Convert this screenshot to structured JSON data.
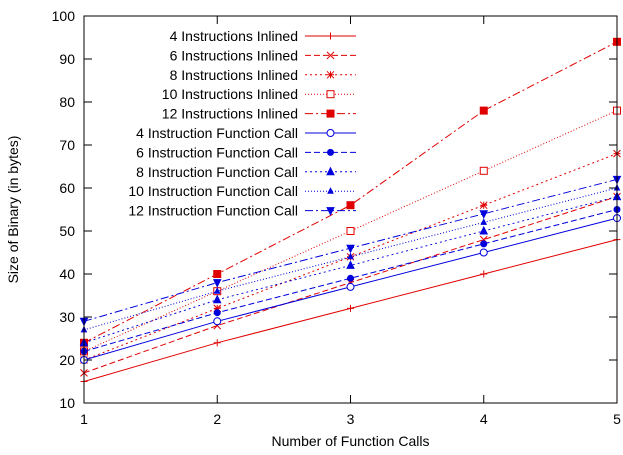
{
  "chart_data": {
    "type": "line",
    "title": "",
    "xlabel": "Number of Function Calls",
    "ylabel": "Size of Binary (in bytes)",
    "xlim": [
      1,
      5
    ],
    "ylim": [
      10,
      100
    ],
    "xticks": [
      1,
      2,
      3,
      4,
      5
    ],
    "yticks": [
      10,
      20,
      30,
      40,
      50,
      60,
      70,
      80,
      90,
      100
    ],
    "grid": false,
    "legend_position": "top-left",
    "x": [
      1,
      2,
      3,
      4,
      5
    ],
    "series": [
      {
        "name": "4 Instructions Inlined",
        "values": [
          15,
          24,
          32,
          40,
          48
        ],
        "color": "#e00000",
        "dash": "solid",
        "marker": "plus"
      },
      {
        "name": "6 Instructions Inlined",
        "values": [
          17,
          28,
          38,
          48,
          58
        ],
        "color": "#e00000",
        "dash": "dashed",
        "marker": "cross"
      },
      {
        "name": "8 Instructions Inlined",
        "values": [
          20,
          32,
          44,
          56,
          68
        ],
        "color": "#e00000",
        "dash": "dotted",
        "marker": "star"
      },
      {
        "name": "10 Instructions Inlined",
        "values": [
          22,
          36,
          50,
          64,
          78
        ],
        "color": "#e00000",
        "dash": "fine-dotted",
        "marker": "open-square"
      },
      {
        "name": "12 Instructions Inlined",
        "values": [
          24,
          40,
          56,
          78,
          94
        ],
        "color": "#e00000",
        "dash": "dash-dot",
        "marker": "filled-square"
      },
      {
        "name": "4 Instruction Function Call",
        "values": [
          20,
          29,
          37,
          45,
          53
        ],
        "color": "#0000dd",
        "dash": "solid",
        "marker": "open-circle"
      },
      {
        "name": "6 Instruction Function Call",
        "values": [
          22,
          31,
          39,
          47,
          55
        ],
        "color": "#0000dd",
        "dash": "dashed",
        "marker": "filled-circle"
      },
      {
        "name": "8 Instruction Function Call",
        "values": [
          24,
          34,
          42,
          50,
          58
        ],
        "color": "#0000dd",
        "dash": "dotted",
        "marker": "triangle-up"
      },
      {
        "name": "10 Instruction Function Call",
        "values": [
          27,
          36,
          44,
          52,
          60
        ],
        "color": "#0000dd",
        "dash": "fine-dotted",
        "marker": "small-triangle-up"
      },
      {
        "name": "12 Instruction Function Call",
        "values": [
          29,
          38,
          46,
          54,
          62
        ],
        "color": "#0000dd",
        "dash": "dash-dot",
        "marker": "triangle-down"
      }
    ]
  }
}
